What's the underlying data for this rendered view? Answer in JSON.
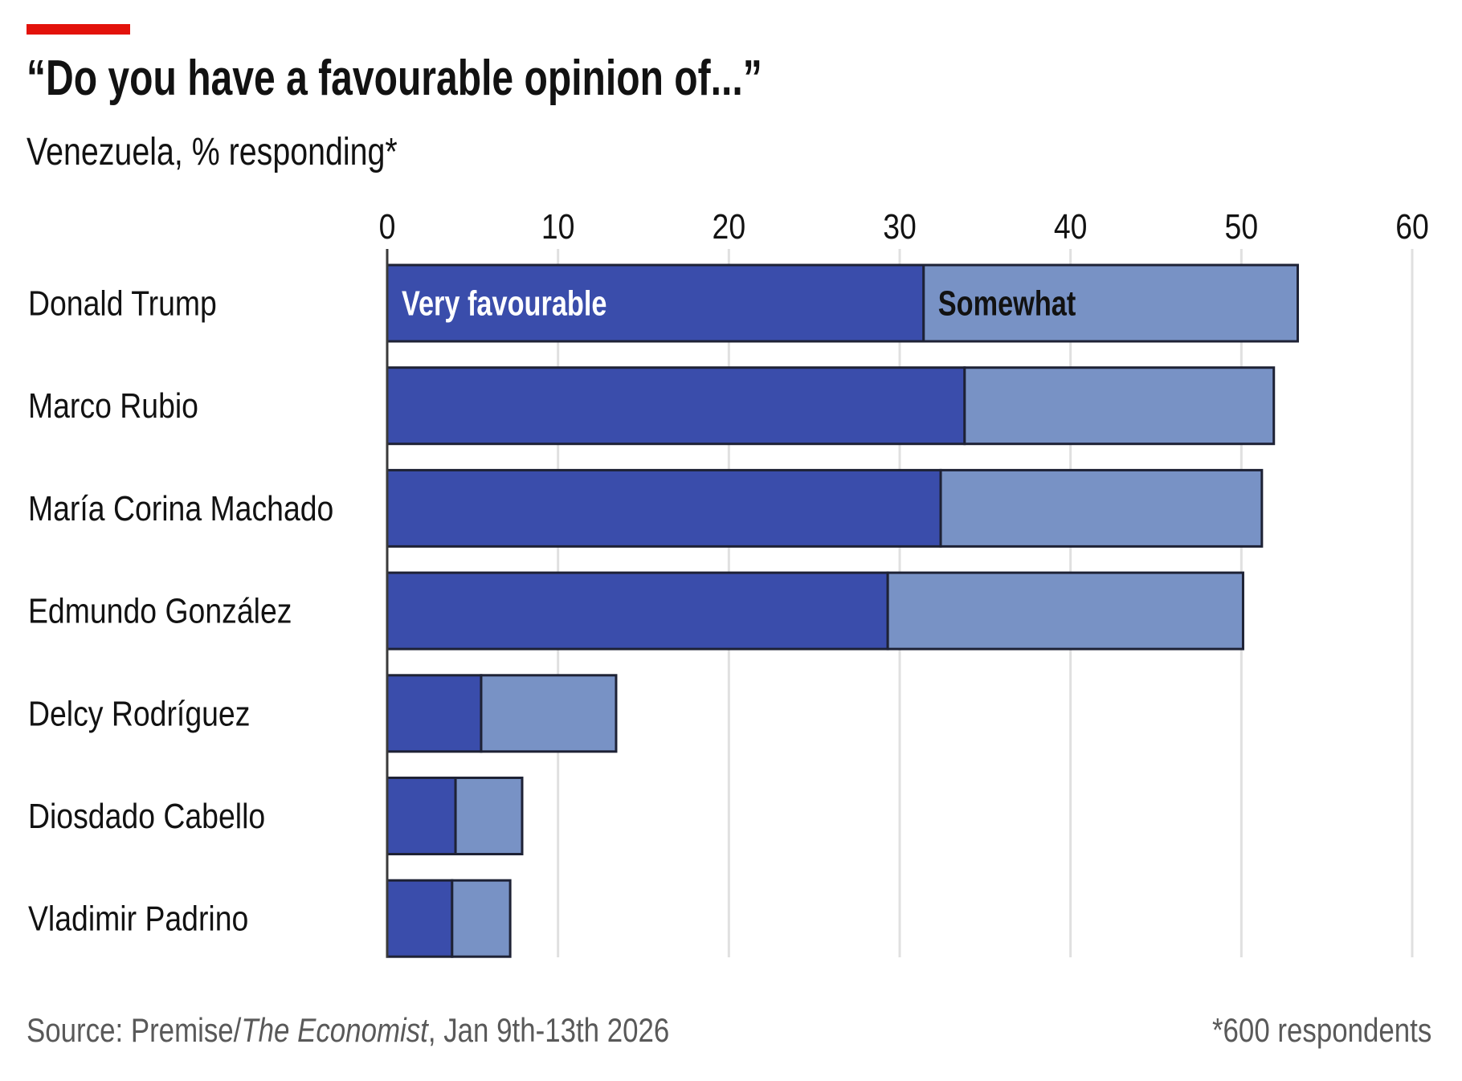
{
  "header": {
    "title": "“Do you have a favourable opinion of...”",
    "subtitle": "Venezuela, % responding*"
  },
  "footer": {
    "source_prefix": "Source: Premise/",
    "source_publication": "The Economist",
    "source_suffix": ", Jan 9th-13th 2026",
    "note": "*600 respondents"
  },
  "colors": {
    "accent_rule": "#e3120b",
    "very_favourable": "#3a4dab",
    "somewhat": "#7892c5",
    "gridline": "#e0e0e0",
    "bar_outline": "#1e2235"
  },
  "chart_data": {
    "type": "bar",
    "orientation": "horizontal",
    "stacked": true,
    "title": "“Do you have a favourable opinion of...”",
    "subtitle": "Venezuela, % responding*",
    "xlabel": "",
    "ylabel": "",
    "xlim": [
      0,
      60
    ],
    "xticks": [
      0,
      10,
      20,
      30,
      40,
      50,
      60
    ],
    "tick_labels": [
      "0",
      "10",
      "20",
      "30",
      "40",
      "50",
      "60"
    ],
    "grid": true,
    "legend_placement": "inside-first-bar",
    "categories": [
      "Donald Trump",
      "Marco Rubio",
      "María Corina Machado",
      "Edmundo González",
      "Delcy Rodríguez",
      "Diosdado Cabello",
      "Vladimir Padrino"
    ],
    "series": [
      {
        "name": "Very favourable",
        "values": [
          31.4,
          33.8,
          32.4,
          29.3,
          5.5,
          4.0,
          3.8
        ]
      },
      {
        "name": "Somewhat",
        "values": [
          21.9,
          18.1,
          18.8,
          20.8,
          7.9,
          3.9,
          3.4
        ]
      }
    ]
  }
}
